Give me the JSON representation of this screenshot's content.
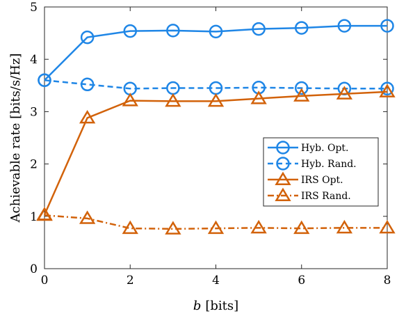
{
  "chart_data": {
    "type": "line",
    "title": "",
    "xlabel_var": "b",
    "xlabel_unit": "[bits]",
    "ylabel": "Achievable rate [bits/s/Hz]",
    "xlim": [
      0,
      8
    ],
    "ylim": [
      0,
      5
    ],
    "xticks": [
      "0",
      "2",
      "4",
      "6",
      "8"
    ],
    "yticks": [
      "0",
      "1",
      "2",
      "3",
      "4",
      "5"
    ],
    "grid": false,
    "legend_position": "center-right",
    "x": [
      0,
      1,
      2,
      3,
      4,
      5,
      6,
      7,
      8
    ],
    "series": [
      {
        "name": "Hyb. Opt.",
        "color": "#1f86e6",
        "marker": "circle",
        "dash": "solid",
        "values": [
          3.6,
          4.42,
          4.54,
          4.55,
          4.53,
          4.58,
          4.6,
          4.64,
          4.64
        ]
      },
      {
        "name": "Hyb. Rand.",
        "color": "#1f86e6",
        "marker": "circle",
        "dash": "dashed",
        "values": [
          3.6,
          3.52,
          3.44,
          3.45,
          3.45,
          3.46,
          3.45,
          3.44,
          3.44
        ]
      },
      {
        "name": "IRS Opt.",
        "color": "#d2620a",
        "marker": "triangle",
        "dash": "solid",
        "values": [
          1.03,
          2.88,
          3.21,
          3.2,
          3.2,
          3.25,
          3.3,
          3.34,
          3.38
        ]
      },
      {
        "name": "IRS Rand.",
        "color": "#d2620a",
        "marker": "triangle",
        "dash": "dashdot",
        "values": [
          1.02,
          0.96,
          0.77,
          0.76,
          0.77,
          0.78,
          0.77,
          0.78,
          0.78
        ]
      }
    ]
  }
}
